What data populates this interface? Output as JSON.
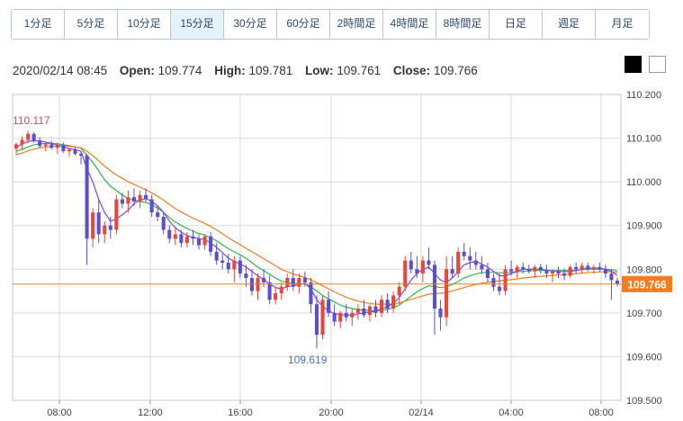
{
  "timeframes": [
    {
      "label": "1分足"
    },
    {
      "label": "5分足"
    },
    {
      "label": "10分足"
    },
    {
      "label": "15分足"
    },
    {
      "label": "30分足"
    },
    {
      "label": "60分足"
    },
    {
      "label": "2時間足"
    },
    {
      "label": "4時間足"
    },
    {
      "label": "8時間足"
    },
    {
      "label": "日足"
    },
    {
      "label": "週足"
    },
    {
      "label": "月足"
    }
  ],
  "active_timeframe": "15分足",
  "ohlc": {
    "datetime": "2020/02/14 08:45",
    "open_label": "Open:",
    "open": "109.774",
    "high_label": "High:",
    "high": "109.781",
    "low_label": "Low:",
    "low": "109.761",
    "close_label": "Close:",
    "close": "109.766"
  },
  "colors": {
    "up": "#e8473c",
    "down": "#5a4fd0",
    "ma_short": "#8a3fe0",
    "ma_mid": "#2db84d",
    "ma_long": "#f07d20",
    "current_price": "#f07d20",
    "grid": "#d9d9d9",
    "high_label": "#e0455a",
    "low_label": "#4a76b5"
  },
  "chart_data": {
    "type": "candlestick",
    "y_axis": {
      "min": 109.5,
      "max": 110.2,
      "ticks": [
        "110.200",
        "110.100",
        "110.000",
        "109.900",
        "109.800",
        "109.700",
        "109.600",
        "109.500"
      ]
    },
    "x_axis": {
      "ticks": [
        "08:00",
        "12:00",
        "16:00",
        "20:00",
        "02/14",
        "04:00",
        "08:00"
      ]
    },
    "high_annotation": "110.117",
    "low_annotation": "109.619",
    "current_price": "109.766",
    "series": [
      {
        "name": "candles",
        "ohlc": [
          [
            110.076,
            110.09,
            110.062,
            110.086
          ],
          [
            110.086,
            110.104,
            110.072,
            110.096
          ],
          [
            110.096,
            110.117,
            110.088,
            110.11
          ],
          [
            110.11,
            110.114,
            110.09,
            110.094
          ],
          [
            110.094,
            110.102,
            110.078,
            110.082
          ],
          [
            110.082,
            110.09,
            110.07,
            110.086
          ],
          [
            110.086,
            110.094,
            110.074,
            110.078
          ],
          [
            110.078,
            110.09,
            110.064,
            110.084
          ],
          [
            110.084,
            110.09,
            110.066,
            110.07
          ],
          [
            110.07,
            110.078,
            110.058,
            110.074
          ],
          [
            110.074,
            110.08,
            110.06,
            110.064
          ],
          [
            110.064,
            110.07,
            110.04,
            110.06
          ],
          [
            110.06,
            110.064,
            109.81,
            109.87
          ],
          [
            109.87,
            109.94,
            109.85,
            109.93
          ],
          [
            109.93,
            109.96,
            109.86,
            109.88
          ],
          [
            109.88,
            109.91,
            109.86,
            109.9
          ],
          [
            109.9,
            109.92,
            109.87,
            109.89
          ],
          [
            109.89,
            109.97,
            109.88,
            109.96
          ],
          [
            109.96,
            109.975,
            109.94,
            109.95
          ],
          [
            109.95,
            109.98,
            109.93,
            109.965
          ],
          [
            109.965,
            109.985,
            109.945,
            109.955
          ],
          [
            109.955,
            109.98,
            109.94,
            109.97
          ],
          [
            109.97,
            109.985,
            109.955,
            109.96
          ],
          [
            109.96,
            109.97,
            109.92,
            109.93
          ],
          [
            109.93,
            109.945,
            109.91,
            109.92
          ],
          [
            109.92,
            109.93,
            109.88,
            109.89
          ],
          [
            109.89,
            109.9,
            109.86,
            109.87
          ],
          [
            109.87,
            109.895,
            109.855,
            109.88
          ],
          [
            109.88,
            109.89,
            109.85,
            109.86
          ],
          [
            109.86,
            109.885,
            109.85,
            109.875
          ],
          [
            109.875,
            109.89,
            109.855,
            109.87
          ],
          [
            109.87,
            109.88,
            109.845,
            109.855
          ],
          [
            109.855,
            109.88,
            109.845,
            109.875
          ],
          [
            109.875,
            109.885,
            109.83,
            109.84
          ],
          [
            109.84,
            109.86,
            109.81,
            109.82
          ],
          [
            109.82,
            109.835,
            109.8,
            109.815
          ],
          [
            109.815,
            109.835,
            109.79,
            109.8
          ],
          [
            109.8,
            109.83,
            109.77,
            109.82
          ],
          [
            109.82,
            109.83,
            109.78,
            109.79
          ],
          [
            109.79,
            109.81,
            109.76,
            109.78
          ],
          [
            109.78,
            109.8,
            109.74,
            109.75
          ],
          [
            109.75,
            109.79,
            109.73,
            109.78
          ],
          [
            109.78,
            109.8,
            109.76,
            109.77
          ],
          [
            109.77,
            109.785,
            109.72,
            109.73
          ],
          [
            109.73,
            109.76,
            109.72,
            109.745
          ],
          [
            109.745,
            109.77,
            109.73,
            109.76
          ],
          [
            109.76,
            109.79,
            109.75,
            109.78
          ],
          [
            109.78,
            109.8,
            109.75,
            109.76
          ],
          [
            109.76,
            109.79,
            109.745,
            109.78
          ],
          [
            109.78,
            109.795,
            109.76,
            109.77
          ],
          [
            109.77,
            109.78,
            109.7,
            109.72
          ],
          [
            109.72,
            109.74,
            109.619,
            109.65
          ],
          [
            109.65,
            109.74,
            109.64,
            109.73
          ],
          [
            109.73,
            109.75,
            109.69,
            109.7
          ],
          [
            109.7,
            109.72,
            109.67,
            109.68
          ],
          [
            109.68,
            109.705,
            109.665,
            109.7
          ],
          [
            109.7,
            109.72,
            109.68,
            109.69
          ],
          [
            109.69,
            109.71,
            109.67,
            109.7
          ],
          [
            109.7,
            109.72,
            109.685,
            109.71
          ],
          [
            109.71,
            109.73,
            109.69,
            109.695
          ],
          [
            109.695,
            109.72,
            109.68,
            109.715
          ],
          [
            109.715,
            109.73,
            109.69,
            109.7
          ],
          [
            109.7,
            109.74,
            109.69,
            109.73
          ],
          [
            109.73,
            109.745,
            109.7,
            109.71
          ],
          [
            109.71,
            109.75,
            109.7,
            109.74
          ],
          [
            109.74,
            109.77,
            109.72,
            109.76
          ],
          [
            109.76,
            109.83,
            109.75,
            109.82
          ],
          [
            109.82,
            109.84,
            109.79,
            109.8
          ],
          [
            109.8,
            109.83,
            109.78,
            109.79
          ],
          [
            109.79,
            109.83,
            109.77,
            109.82
          ],
          [
            109.82,
            109.85,
            109.8,
            109.81
          ],
          [
            109.81,
            109.82,
            109.65,
            109.71
          ],
          [
            109.71,
            109.73,
            109.66,
            109.69
          ],
          [
            109.69,
            109.83,
            109.67,
            109.8
          ],
          [
            109.8,
            109.83,
            109.78,
            109.79
          ],
          [
            109.79,
            109.85,
            109.78,
            109.84
          ],
          [
            109.84,
            109.86,
            109.82,
            109.83
          ],
          [
            109.83,
            109.85,
            109.8,
            109.82
          ],
          [
            109.82,
            109.84,
            109.8,
            109.81
          ],
          [
            109.81,
            109.83,
            109.79,
            109.8
          ],
          [
            109.8,
            109.815,
            109.77,
            109.78
          ],
          [
            109.78,
            109.79,
            109.75,
            109.76
          ],
          [
            109.76,
            109.79,
            109.74,
            109.75
          ],
          [
            109.75,
            109.81,
            109.74,
            109.8
          ],
          [
            109.8,
            109.82,
            109.785,
            109.795
          ],
          [
            109.795,
            109.81,
            109.78,
            109.805
          ],
          [
            109.805,
            109.815,
            109.79,
            109.8
          ],
          [
            109.8,
            109.81,
            109.79,
            109.795
          ],
          [
            109.795,
            109.81,
            109.78,
            109.805
          ],
          [
            109.805,
            109.812,
            109.79,
            109.798
          ],
          [
            109.798,
            109.81,
            109.78,
            109.79
          ],
          [
            109.79,
            109.8,
            109.77,
            109.795
          ],
          [
            109.795,
            109.805,
            109.78,
            109.79
          ],
          [
            109.79,
            109.802,
            109.775,
            109.785
          ],
          [
            109.785,
            109.81,
            109.78,
            109.805
          ],
          [
            109.805,
            109.815,
            109.79,
            109.8
          ],
          [
            109.8,
            109.815,
            109.79,
            109.808
          ],
          [
            109.808,
            109.815,
            109.795,
            109.8
          ],
          [
            109.8,
            109.81,
            109.79,
            109.805
          ],
          [
            109.805,
            109.815,
            109.795,
            109.8
          ],
          [
            109.8,
            109.81,
            109.78,
            109.79
          ],
          [
            109.79,
            109.8,
            109.73,
            109.775
          ],
          [
            109.774,
            109.781,
            109.761,
            109.766
          ]
        ]
      },
      {
        "name": "ma_short",
        "values": [
          110.08,
          110.086,
          110.093,
          110.094,
          110.094,
          110.091,
          110.088,
          110.084,
          110.08,
          110.076,
          110.074,
          110.07,
          110.03,
          110.0,
          109.96,
          109.93,
          109.91,
          109.915,
          109.925,
          109.935,
          109.95,
          109.958,
          109.962,
          109.955,
          109.945,
          109.93,
          109.91,
          109.895,
          109.885,
          109.877,
          109.873,
          109.87,
          109.868,
          109.86,
          109.85,
          109.838,
          109.825,
          109.818,
          109.812,
          109.805,
          109.795,
          109.785,
          109.777,
          109.766,
          109.758,
          109.755,
          109.76,
          109.762,
          109.765,
          109.768,
          109.755,
          109.73,
          109.715,
          109.705,
          109.698,
          109.696,
          109.695,
          109.695,
          109.698,
          109.7,
          109.702,
          109.704,
          109.71,
          109.714,
          109.722,
          109.735,
          109.755,
          109.775,
          109.79,
          109.8,
          109.805,
          109.79,
          109.775,
          109.77,
          109.78,
          109.795,
          109.81,
          109.815,
          109.818,
          109.812,
          109.805,
          109.795,
          109.785,
          109.785,
          109.79,
          109.795,
          109.8,
          109.8,
          109.8,
          109.8,
          109.798,
          109.796,
          109.795,
          109.794,
          109.795,
          109.797,
          109.8,
          109.802,
          109.803,
          109.802,
          109.8,
          109.795,
          109.786
        ]
      },
      {
        "name": "ma_mid",
        "values": [
          110.07,
          110.074,
          110.08,
          110.085,
          110.087,
          110.088,
          110.088,
          110.087,
          110.085,
          110.083,
          110.08,
          110.077,
          110.06,
          110.045,
          110.025,
          110.005,
          109.99,
          109.98,
          109.97,
          109.962,
          109.958,
          109.955,
          109.953,
          109.948,
          109.94,
          109.93,
          109.918,
          109.908,
          109.9,
          109.893,
          109.887,
          109.882,
          109.878,
          109.872,
          109.865,
          109.856,
          109.847,
          109.84,
          109.833,
          109.825,
          109.815,
          109.805,
          109.797,
          109.788,
          109.78,
          109.773,
          109.77,
          109.768,
          109.767,
          109.766,
          109.76,
          109.75,
          109.74,
          109.732,
          109.725,
          109.718,
          109.713,
          109.71,
          109.708,
          109.706,
          109.705,
          109.704,
          109.706,
          109.708,
          109.712,
          109.718,
          109.728,
          109.738,
          109.748,
          109.756,
          109.762,
          109.76,
          109.758,
          109.76,
          109.765,
          109.772,
          109.78,
          109.785,
          109.789,
          109.792,
          109.793,
          109.793,
          109.792,
          109.792,
          109.793,
          109.794,
          109.795,
          109.796,
          109.797,
          109.797,
          109.797,
          109.797,
          109.797,
          109.797,
          109.797,
          109.798,
          109.799,
          109.8,
          109.8,
          109.8,
          109.8,
          109.799,
          109.796
        ]
      },
      {
        "name": "ma_long",
        "values": [
          110.062,
          110.066,
          110.071,
          110.075,
          110.078,
          110.08,
          110.081,
          110.082,
          110.082,
          110.081,
          110.08,
          110.078,
          110.07,
          110.06,
          110.048,
          110.036,
          110.025,
          110.016,
          110.008,
          110.0,
          109.994,
          109.988,
          109.982,
          109.975,
          109.967,
          109.958,
          109.948,
          109.939,
          109.931,
          109.924,
          109.917,
          109.911,
          109.905,
          109.898,
          109.89,
          109.881,
          109.872,
          109.864,
          109.856,
          109.848,
          109.84,
          109.832,
          109.824,
          109.816,
          109.808,
          109.8,
          109.794,
          109.789,
          109.785,
          109.781,
          109.776,
          109.769,
          109.762,
          109.755,
          109.748,
          109.742,
          109.736,
          109.731,
          109.727,
          109.724,
          109.722,
          109.72,
          109.72,
          109.72,
          109.721,
          109.723,
          109.727,
          109.731,
          109.735,
          109.739,
          109.743,
          109.744,
          109.745,
          109.747,
          109.75,
          109.754,
          109.758,
          109.762,
          109.765,
          109.768,
          109.77,
          109.772,
          109.773,
          109.775,
          109.776,
          109.778,
          109.78,
          109.781,
          109.783,
          109.784,
          109.785,
          109.786,
          109.787,
          109.788,
          109.789,
          109.79,
          109.791,
          109.792,
          109.793,
          109.794,
          109.794,
          109.794,
          109.793
        ]
      }
    ]
  }
}
